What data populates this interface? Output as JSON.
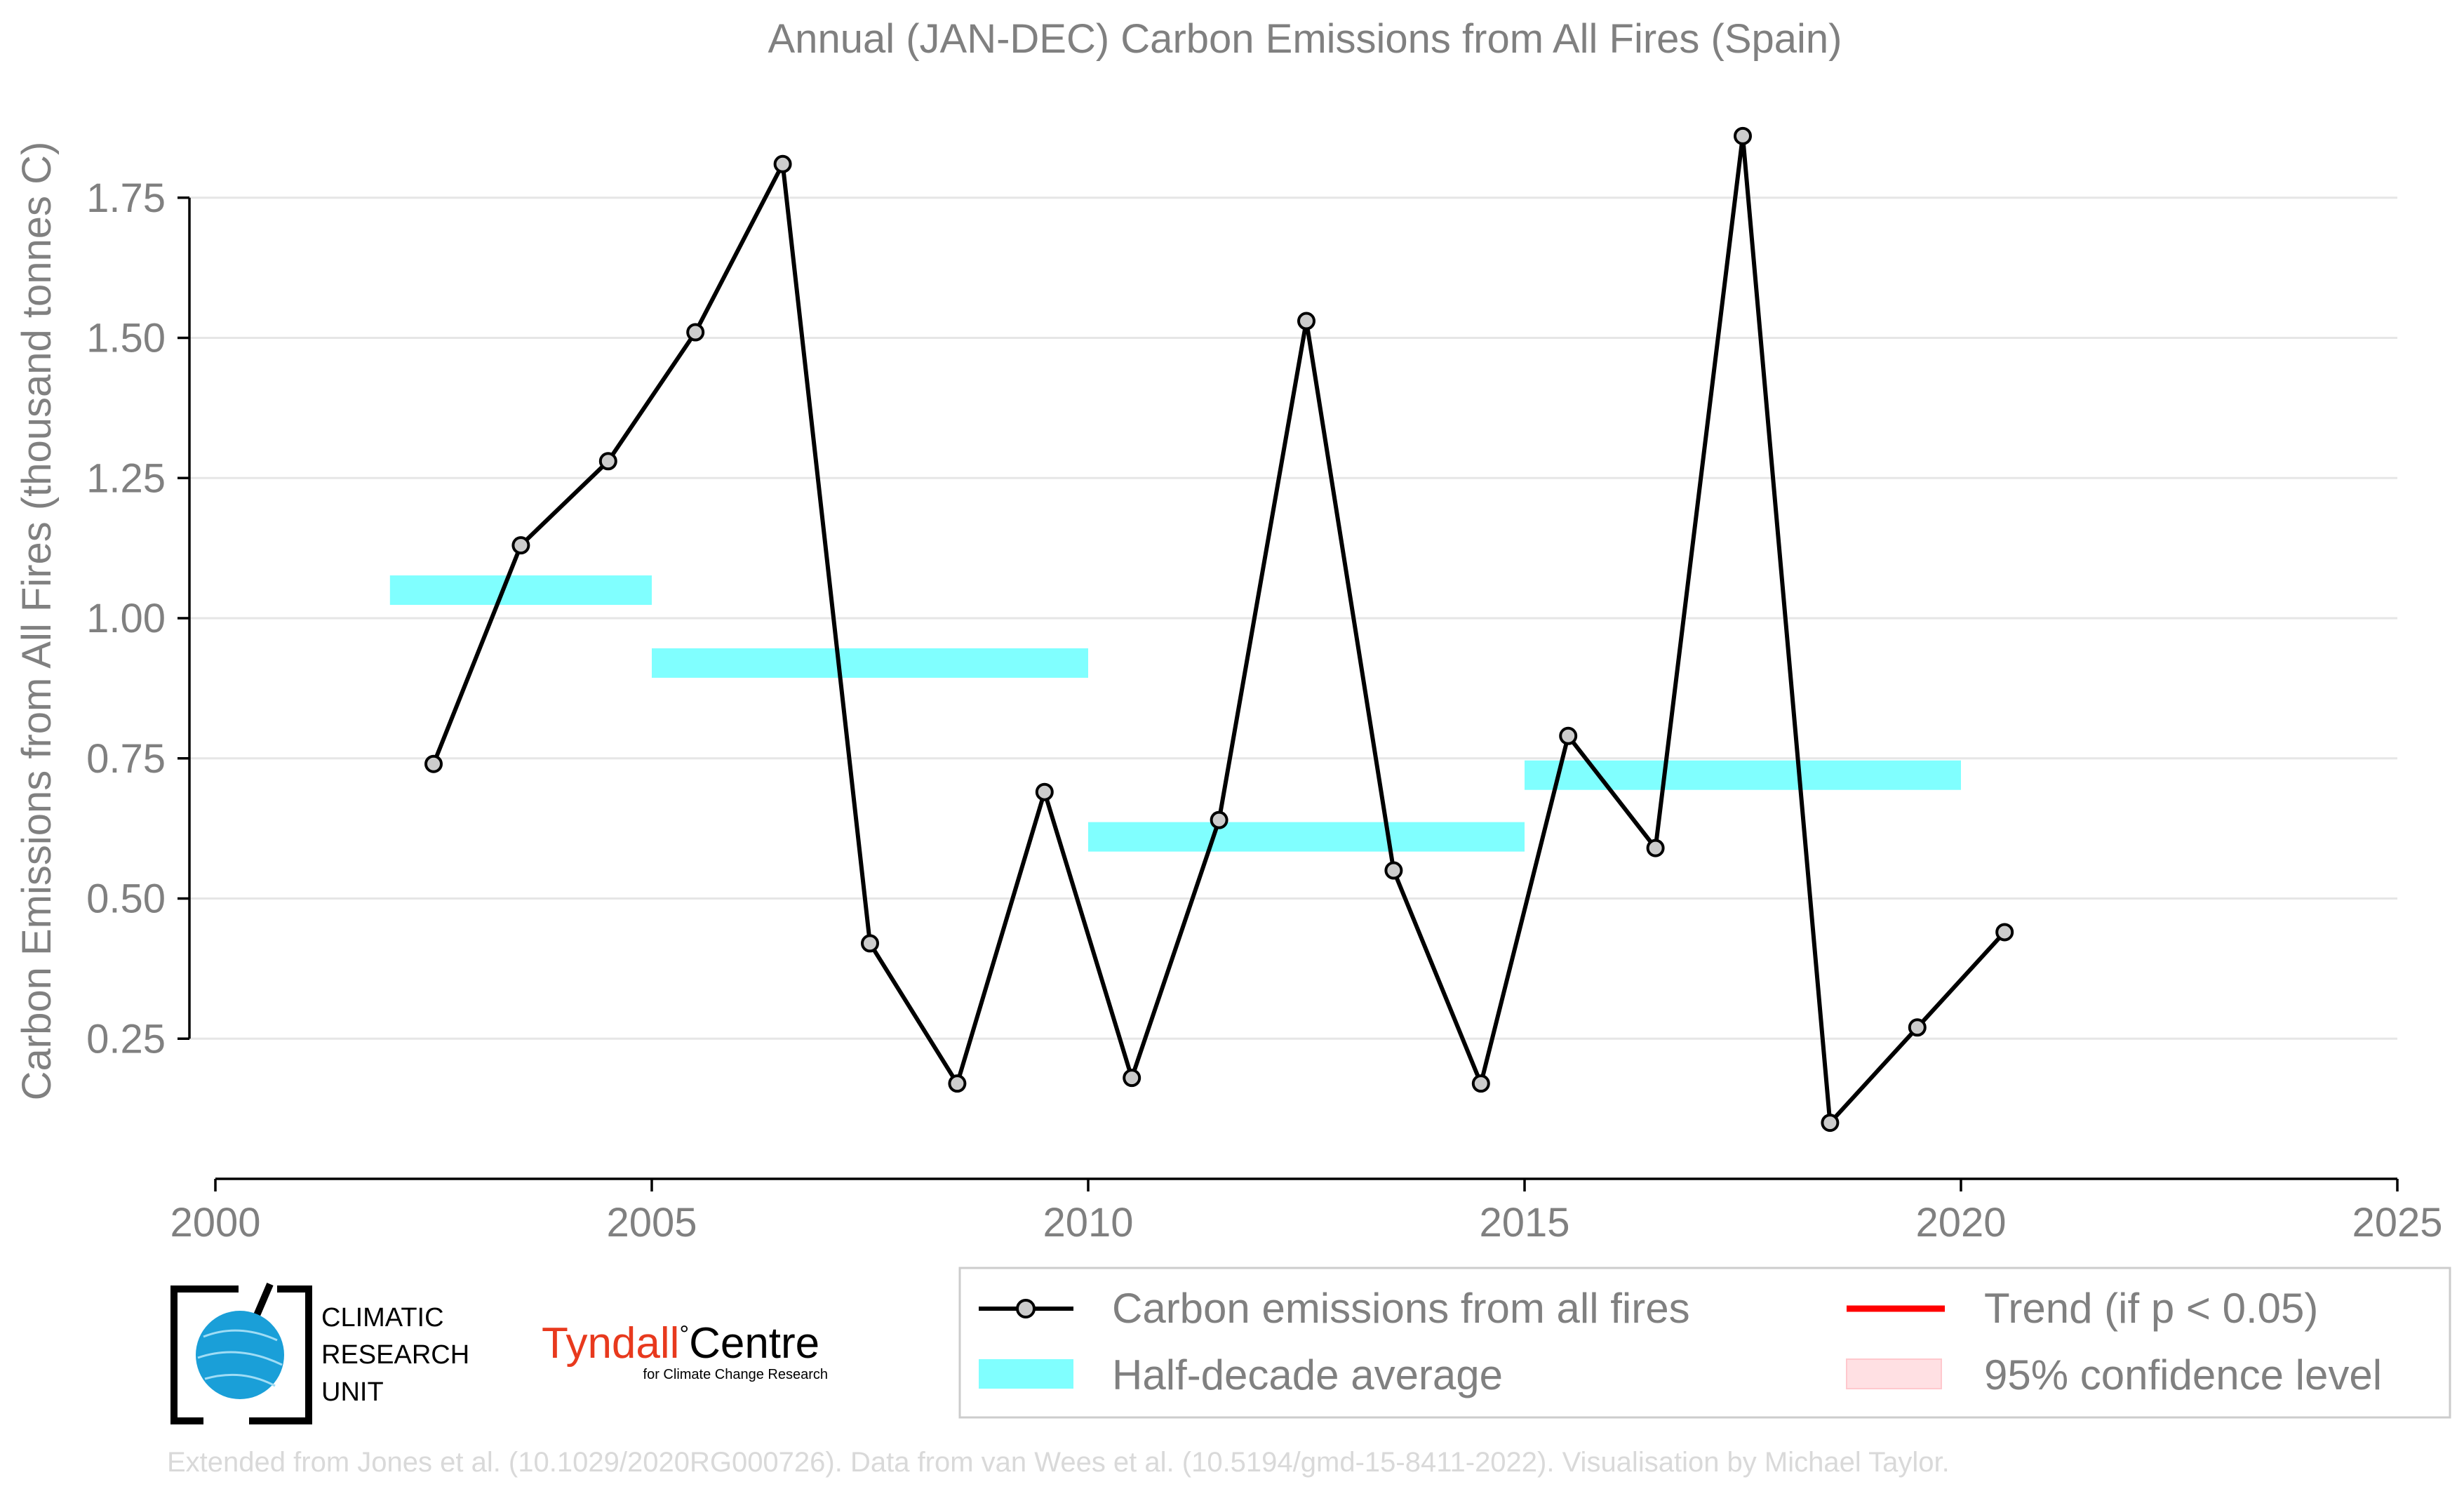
{
  "chart_data": {
    "type": "line",
    "title": "Annual (JAN-DEC) Carbon Emissions from All Fires (Spain)",
    "ylabel": "Carbon Emissions from All Fires (thousand tonnes C)",
    "xlabel": "",
    "xlim": [
      2000,
      2025
    ],
    "ylim": [
      0.0,
      1.9
    ],
    "x_ticks": [
      2000,
      2005,
      2010,
      2015,
      2020,
      2025
    ],
    "y_ticks": [
      0.25,
      0.5,
      0.75,
      1.0,
      1.25,
      1.5,
      1.75
    ],
    "x_tick_labels": [
      "2000",
      "2005",
      "2010",
      "2015",
      "2020",
      "2025"
    ],
    "y_tick_labels": [
      "0.25",
      "0.50",
      "0.75",
      "1.00",
      "1.25",
      "1.50",
      "1.75"
    ],
    "grid": "horizontal",
    "legend_position": "bottom-right",
    "series": [
      {
        "name": "Carbon emissions from all fires",
        "type": "line",
        "color": "#000000",
        "marker_color": "#cccccc",
        "x": [
          2002.5,
          2003.5,
          2004.5,
          2005.5,
          2006.5,
          2007.5,
          2008.5,
          2009.5,
          2010.5,
          2011.5,
          2012.5,
          2013.5,
          2014.5,
          2015.5,
          2016.5,
          2017.5,
          2018.5,
          2019.5,
          2020.5
        ],
        "y": [
          0.74,
          1.13,
          1.28,
          1.51,
          1.81,
          0.42,
          0.17,
          0.69,
          0.18,
          0.64,
          1.53,
          0.55,
          0.17,
          0.79,
          0.59,
          1.86,
          0.1,
          0.27,
          0.44
        ]
      },
      {
        "name": "Half-decade average",
        "type": "segments",
        "color": "#80ffff",
        "segments": [
          {
            "x0": 2002,
            "x1": 2005,
            "y": 1.05
          },
          {
            "x0": 2005,
            "x1": 2010,
            "y": 0.92
          },
          {
            "x0": 2010,
            "x1": 2015,
            "y": 0.61
          },
          {
            "x0": 2015,
            "x1": 2020,
            "y": 0.72
          }
        ]
      }
    ],
    "legend": [
      {
        "label": "Carbon emissions from all fires",
        "kind": "line-marker",
        "color": "#000000"
      },
      {
        "label": "Trend (if p < 0.05)",
        "kind": "line",
        "color": "#ff0000"
      },
      {
        "label": "Half-decade average",
        "kind": "band",
        "color": "#80ffff"
      },
      {
        "label": "95% confidence level",
        "kind": "patch",
        "color": "#ffe0e3"
      }
    ]
  },
  "logos": {
    "cru": {
      "line1": "CLIMATIC",
      "line2": "RESEARCH",
      "line3": "UNIT"
    },
    "tyndall": {
      "main": "Tyndall",
      "degree": "°",
      "second": "Centre",
      "sub": "for Climate Change Research"
    }
  },
  "credit": "Extended from Jones et al. (10.1029/2020RG000726). Data from van Wees et al. (10.5194/gmd-15-8411-2022). Visualisation by Michael Taylor."
}
